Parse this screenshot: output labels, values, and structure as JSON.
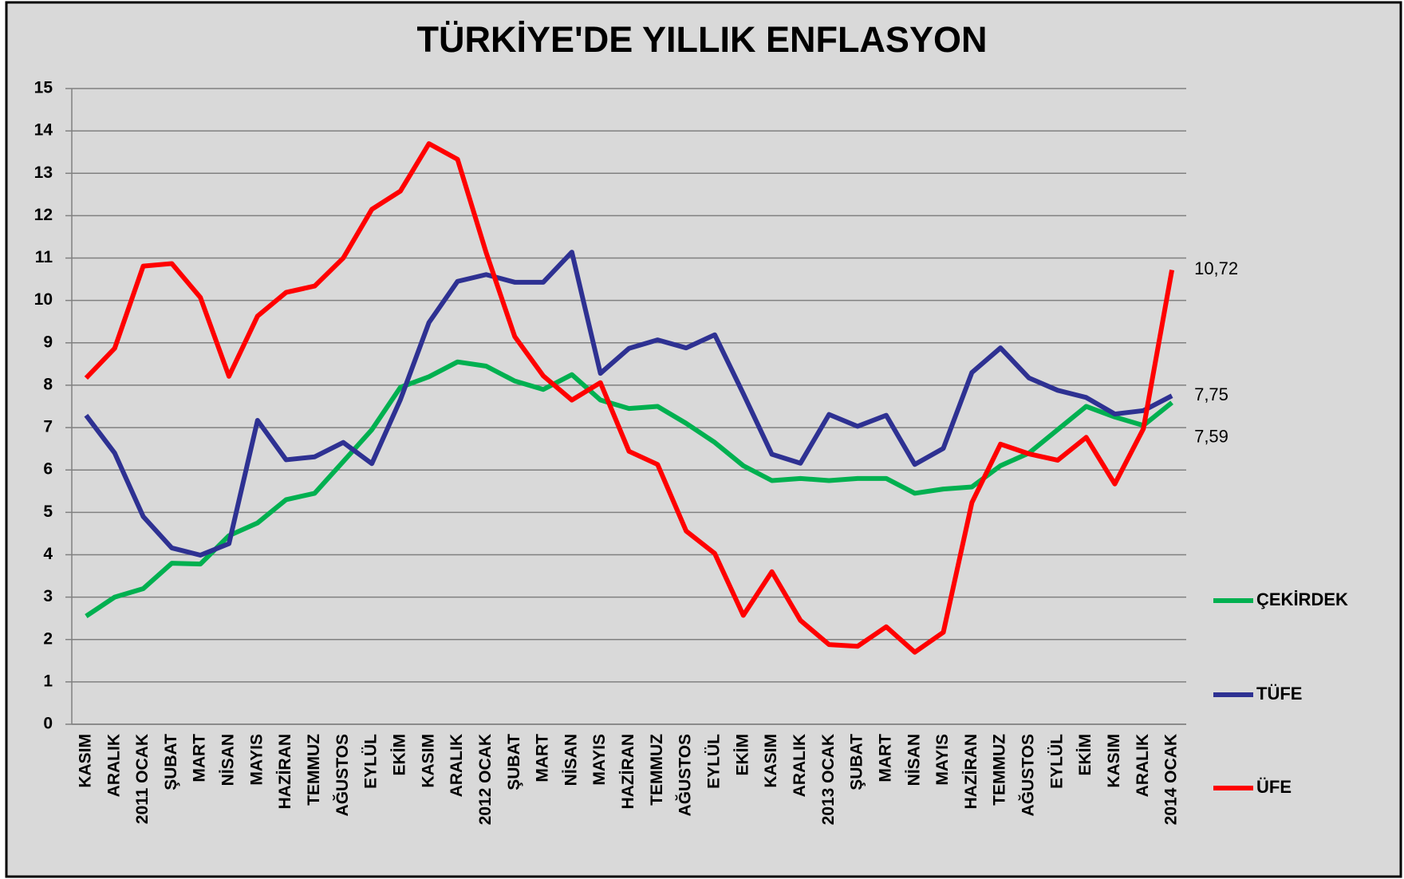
{
  "chart_data": {
    "type": "line",
    "title": "TÜRKİYE'DE YILLIK ENFLASYON",
    "categories": [
      "KASIM",
      "ARALIK",
      "2011 OCAK",
      "ŞUBAT",
      "MART",
      "NİSAN",
      "MAYIS",
      "HAZİRAN",
      "TEMMUZ",
      "AĞUSTOS",
      "EYLÜL",
      "EKİM",
      "KASIM",
      "ARALIK",
      "2012 OCAK",
      "ŞUBAT",
      "MART",
      "NİSAN",
      "MAYIS",
      "HAZİRAN",
      "TEMMUZ",
      "AĞUSTOS",
      "EYLÜL",
      "EKİM",
      "KASIM",
      "ARALIK",
      "2013 OCAK",
      "ŞUBAT",
      "MART",
      "NİSAN",
      "MAYIS",
      "HAZİRAN",
      "TEMMUZ",
      "AĞUSTOS",
      "EYLÜL",
      "EKİM",
      "KASIM",
      "ARALIK",
      "2014 OCAK"
    ],
    "series": [
      {
        "name": "ÇEKİRDEK",
        "color": "#00b050",
        "values": [
          2.55,
          3.0,
          3.2,
          3.8,
          3.78,
          4.45,
          4.75,
          5.3,
          5.45,
          6.2,
          6.95,
          7.95,
          8.2,
          8.55,
          8.45,
          8.1,
          7.9,
          8.25,
          7.65,
          7.45,
          7.5,
          7.1,
          6.65,
          6.1,
          5.75,
          5.8,
          5.75,
          5.8,
          5.8,
          5.45,
          5.55,
          5.6,
          6.1,
          6.4,
          6.95,
          7.5,
          7.25,
          7.05,
          7.59
        ],
        "value_labels": [
          null,
          null,
          null,
          null,
          null,
          null,
          null,
          null,
          null,
          null,
          null,
          null,
          null,
          null,
          null,
          null,
          null,
          null,
          null,
          null,
          null,
          null,
          null,
          null,
          null,
          null,
          null,
          null,
          null,
          null,
          null,
          null,
          null,
          null,
          null,
          null,
          null,
          null,
          "7,59"
        ]
      },
      {
        "name": "TÜFE",
        "color": "#2e3192",
        "values": [
          7.29,
          6.4,
          4.9,
          4.16,
          3.99,
          4.26,
          7.17,
          6.24,
          6.31,
          6.65,
          6.15,
          7.66,
          9.48,
          10.45,
          10.61,
          10.43,
          10.43,
          11.14,
          8.28,
          8.87,
          9.07,
          8.88,
          9.19,
          7.8,
          6.37,
          6.16,
          7.31,
          7.03,
          7.29,
          6.13,
          6.51,
          8.3,
          8.88,
          8.17,
          7.88,
          7.71,
          7.32,
          7.4,
          7.75
        ],
        "value_labels": [
          null,
          null,
          null,
          null,
          null,
          null,
          null,
          null,
          null,
          null,
          null,
          null,
          null,
          null,
          null,
          null,
          null,
          null,
          null,
          null,
          null,
          null,
          null,
          null,
          null,
          null,
          null,
          null,
          null,
          null,
          null,
          null,
          null,
          null,
          null,
          null,
          null,
          null,
          "7,75"
        ]
      },
      {
        "name": "ÜFE",
        "color": "#ff0000",
        "values": [
          8.17,
          8.87,
          10.81,
          10.87,
          10.07,
          8.21,
          9.63,
          10.19,
          10.34,
          11.0,
          12.15,
          12.58,
          13.7,
          13.33,
          11.13,
          9.15,
          8.22,
          7.65,
          8.06,
          6.44,
          6.13,
          4.56,
          4.03,
          2.57,
          3.6,
          2.45,
          1.88,
          1.84,
          2.3,
          1.7,
          2.17,
          5.23,
          6.61,
          6.38,
          6.23,
          6.77,
          5.67,
          6.97,
          10.72
        ],
        "value_labels": [
          null,
          null,
          null,
          null,
          null,
          null,
          null,
          null,
          null,
          null,
          null,
          null,
          null,
          null,
          null,
          null,
          null,
          null,
          null,
          null,
          null,
          null,
          null,
          null,
          null,
          null,
          null,
          null,
          null,
          null,
          null,
          null,
          null,
          null,
          null,
          null,
          null,
          null,
          "10,72"
        ]
      }
    ],
    "ylim": [
      0,
      15
    ],
    "yticks": [
      0,
      1,
      2,
      3,
      4,
      5,
      6,
      7,
      8,
      9,
      10,
      11,
      12,
      13,
      14,
      15
    ],
    "grid": true,
    "legend": "right"
  }
}
